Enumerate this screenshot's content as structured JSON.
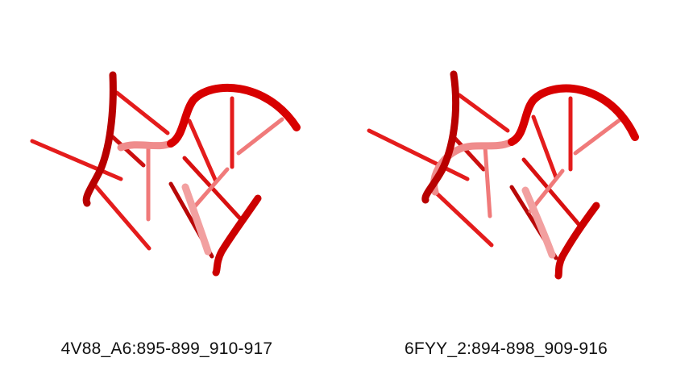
{
  "colors": {
    "backbone": "#d80000",
    "backbone_dark": "#8e0000",
    "base": "#e41c1c",
    "base_faded": "#f07a7a",
    "background": "#ffffff"
  },
  "panels": [
    {
      "caption": "4V88_A6:895-899_910-917"
    },
    {
      "caption": "6FYY_2:894-898_909-916"
    }
  ]
}
